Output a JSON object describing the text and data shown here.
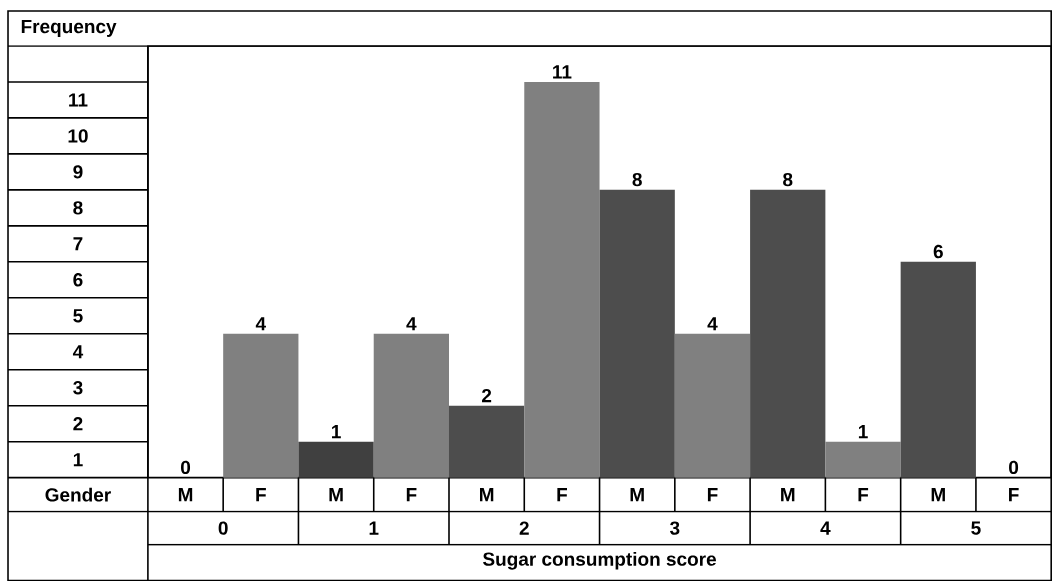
{
  "chart_data": {
    "type": "bar",
    "ylabel": "Frequency",
    "xlabel": "Sugar consumption score",
    "categories": [
      "M",
      "F",
      "M",
      "F",
      "M",
      "F",
      "M",
      "F",
      "M",
      "F",
      "M",
      "F"
    ],
    "values": [
      0,
      4,
      1,
      4,
      2,
      11,
      8,
      4,
      8,
      1,
      6,
      0
    ],
    "colors": [
      "#4d4d4d",
      "#808080",
      "#404040",
      "#808080",
      "#4d4d4d",
      "#808080",
      "#4d4d4d",
      "#808080",
      "#4d4d4d",
      "#808080",
      "#4d4d4d",
      "#808080"
    ],
    "ylim": [
      0,
      12
    ],
    "annotations": [
      "Gender",
      "0",
      "1",
      "2",
      "3",
      "4",
      "5",
      "1",
      "2",
      "3",
      "4",
      "5",
      "6",
      "7",
      "8",
      "9",
      "10",
      "11"
    ],
    "data_labels": true
  }
}
